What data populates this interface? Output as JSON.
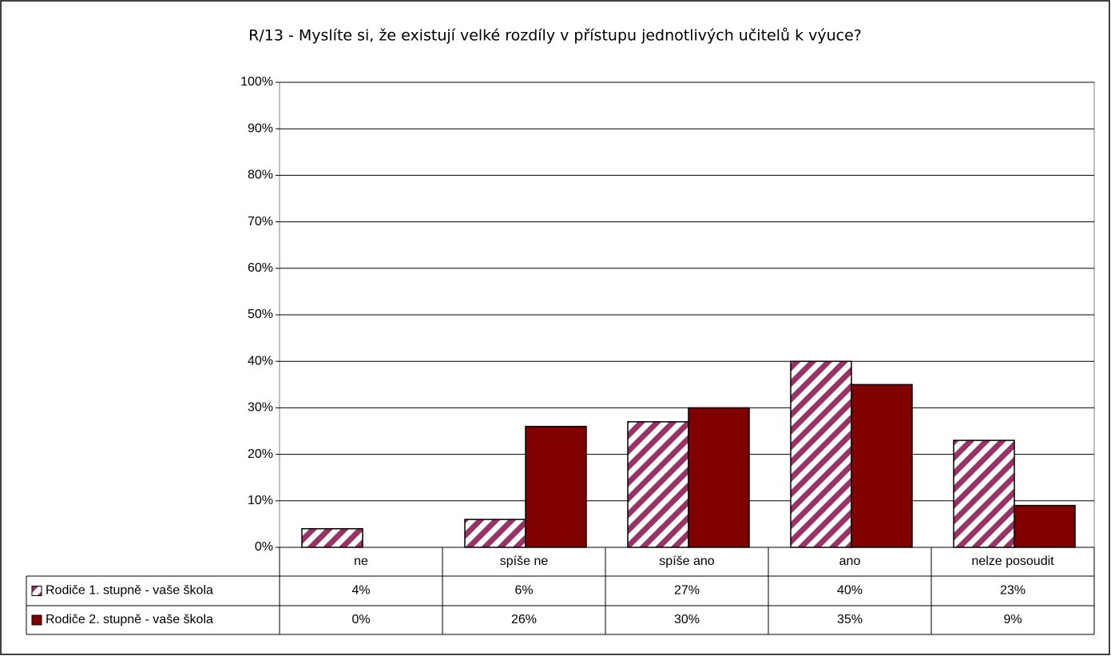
{
  "chart_data": {
    "type": "bar",
    "title": "R/13 - Myslíte si, že existují velké rozdíly v přístupu jednotlivých učitelů k výuce?",
    "categories": [
      "ne",
      "spíše ne",
      "spíše ano",
      "ano",
      "nelze posoudit"
    ],
    "series": [
      {
        "name": "Rodiče 1. stupně - vaše škola",
        "color": "#993366",
        "values": [
          4,
          6,
          27,
          40,
          23
        ],
        "value_labels": [
          "4%",
          "6%",
          "27%",
          "40%",
          "23%"
        ]
      },
      {
        "name": "Rodiče 2. stupně - vaše škola",
        "color": "#800000",
        "values": [
          0,
          26,
          30,
          35,
          9
        ],
        "value_labels": [
          "0%",
          "26%",
          "30%",
          "35%",
          "9%"
        ]
      }
    ],
    "ylim": [
      0,
      100
    ],
    "yticks": [
      {
        "value": 0,
        "label": "0%"
      },
      {
        "value": 10,
        "label": "10%"
      },
      {
        "value": 20,
        "label": "20%"
      },
      {
        "value": 30,
        "label": "30%"
      },
      {
        "value": 40,
        "label": "40%"
      },
      {
        "value": 50,
        "label": "50%"
      },
      {
        "value": 60,
        "label": "60%"
      },
      {
        "value": 70,
        "label": "70%"
      },
      {
        "value": 80,
        "label": "80%"
      },
      {
        "value": 90,
        "label": "90%"
      },
      {
        "value": 100,
        "label": "100%"
      }
    ],
    "grid": true
  }
}
